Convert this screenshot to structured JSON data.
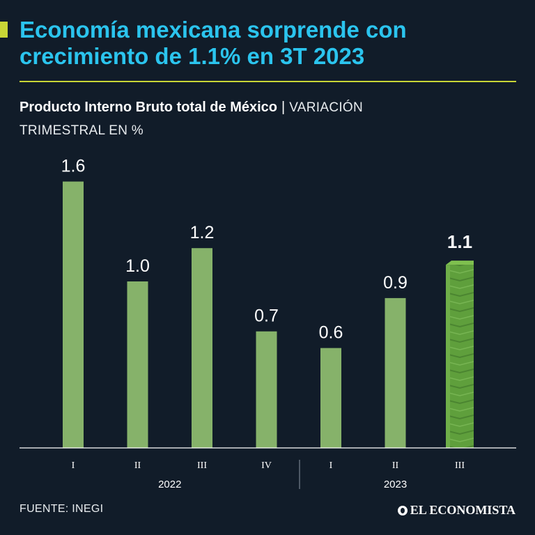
{
  "header": {
    "title_line1": "Economía mexicana sorprende con",
    "title_line2": "crecimiento de 1.1% en 3T 2023"
  },
  "subtitle": {
    "bold": "Producto Interno Bruto total de México",
    "separator": "|",
    "light_line1": "VARIACIÓN",
    "light_line2": "TRIMESTRAL EN %"
  },
  "footer": {
    "source": "FUENTE: INEGI",
    "brand": "EL ECONOMISTA"
  },
  "colors": {
    "background": "#111c29",
    "title": "#2bc4ee",
    "accent": "#c9d636",
    "bar": "#86b26a",
    "bar_highlight": "#5f9f3c"
  },
  "chart_data": {
    "type": "bar",
    "title": "Producto Interno Bruto total de México",
    "ylabel": "Variación trimestral en %",
    "xlabel": "",
    "categories": [
      "I",
      "II",
      "III",
      "IV",
      "I",
      "II",
      "III"
    ],
    "values": [
      1.6,
      1.0,
      1.2,
      0.7,
      0.6,
      0.9,
      1.1
    ],
    "value_labels": [
      "1.6",
      "1.0",
      "1.2",
      "0.7",
      "0.6",
      "0.9",
      "1.1"
    ],
    "highlight_index": 6,
    "groups": [
      {
        "label": "2022",
        "start": 0,
        "end": 3
      },
      {
        "label": "2023",
        "start": 4,
        "end": 6
      }
    ],
    "ylim": [
      0,
      1.8
    ],
    "grid": false
  }
}
